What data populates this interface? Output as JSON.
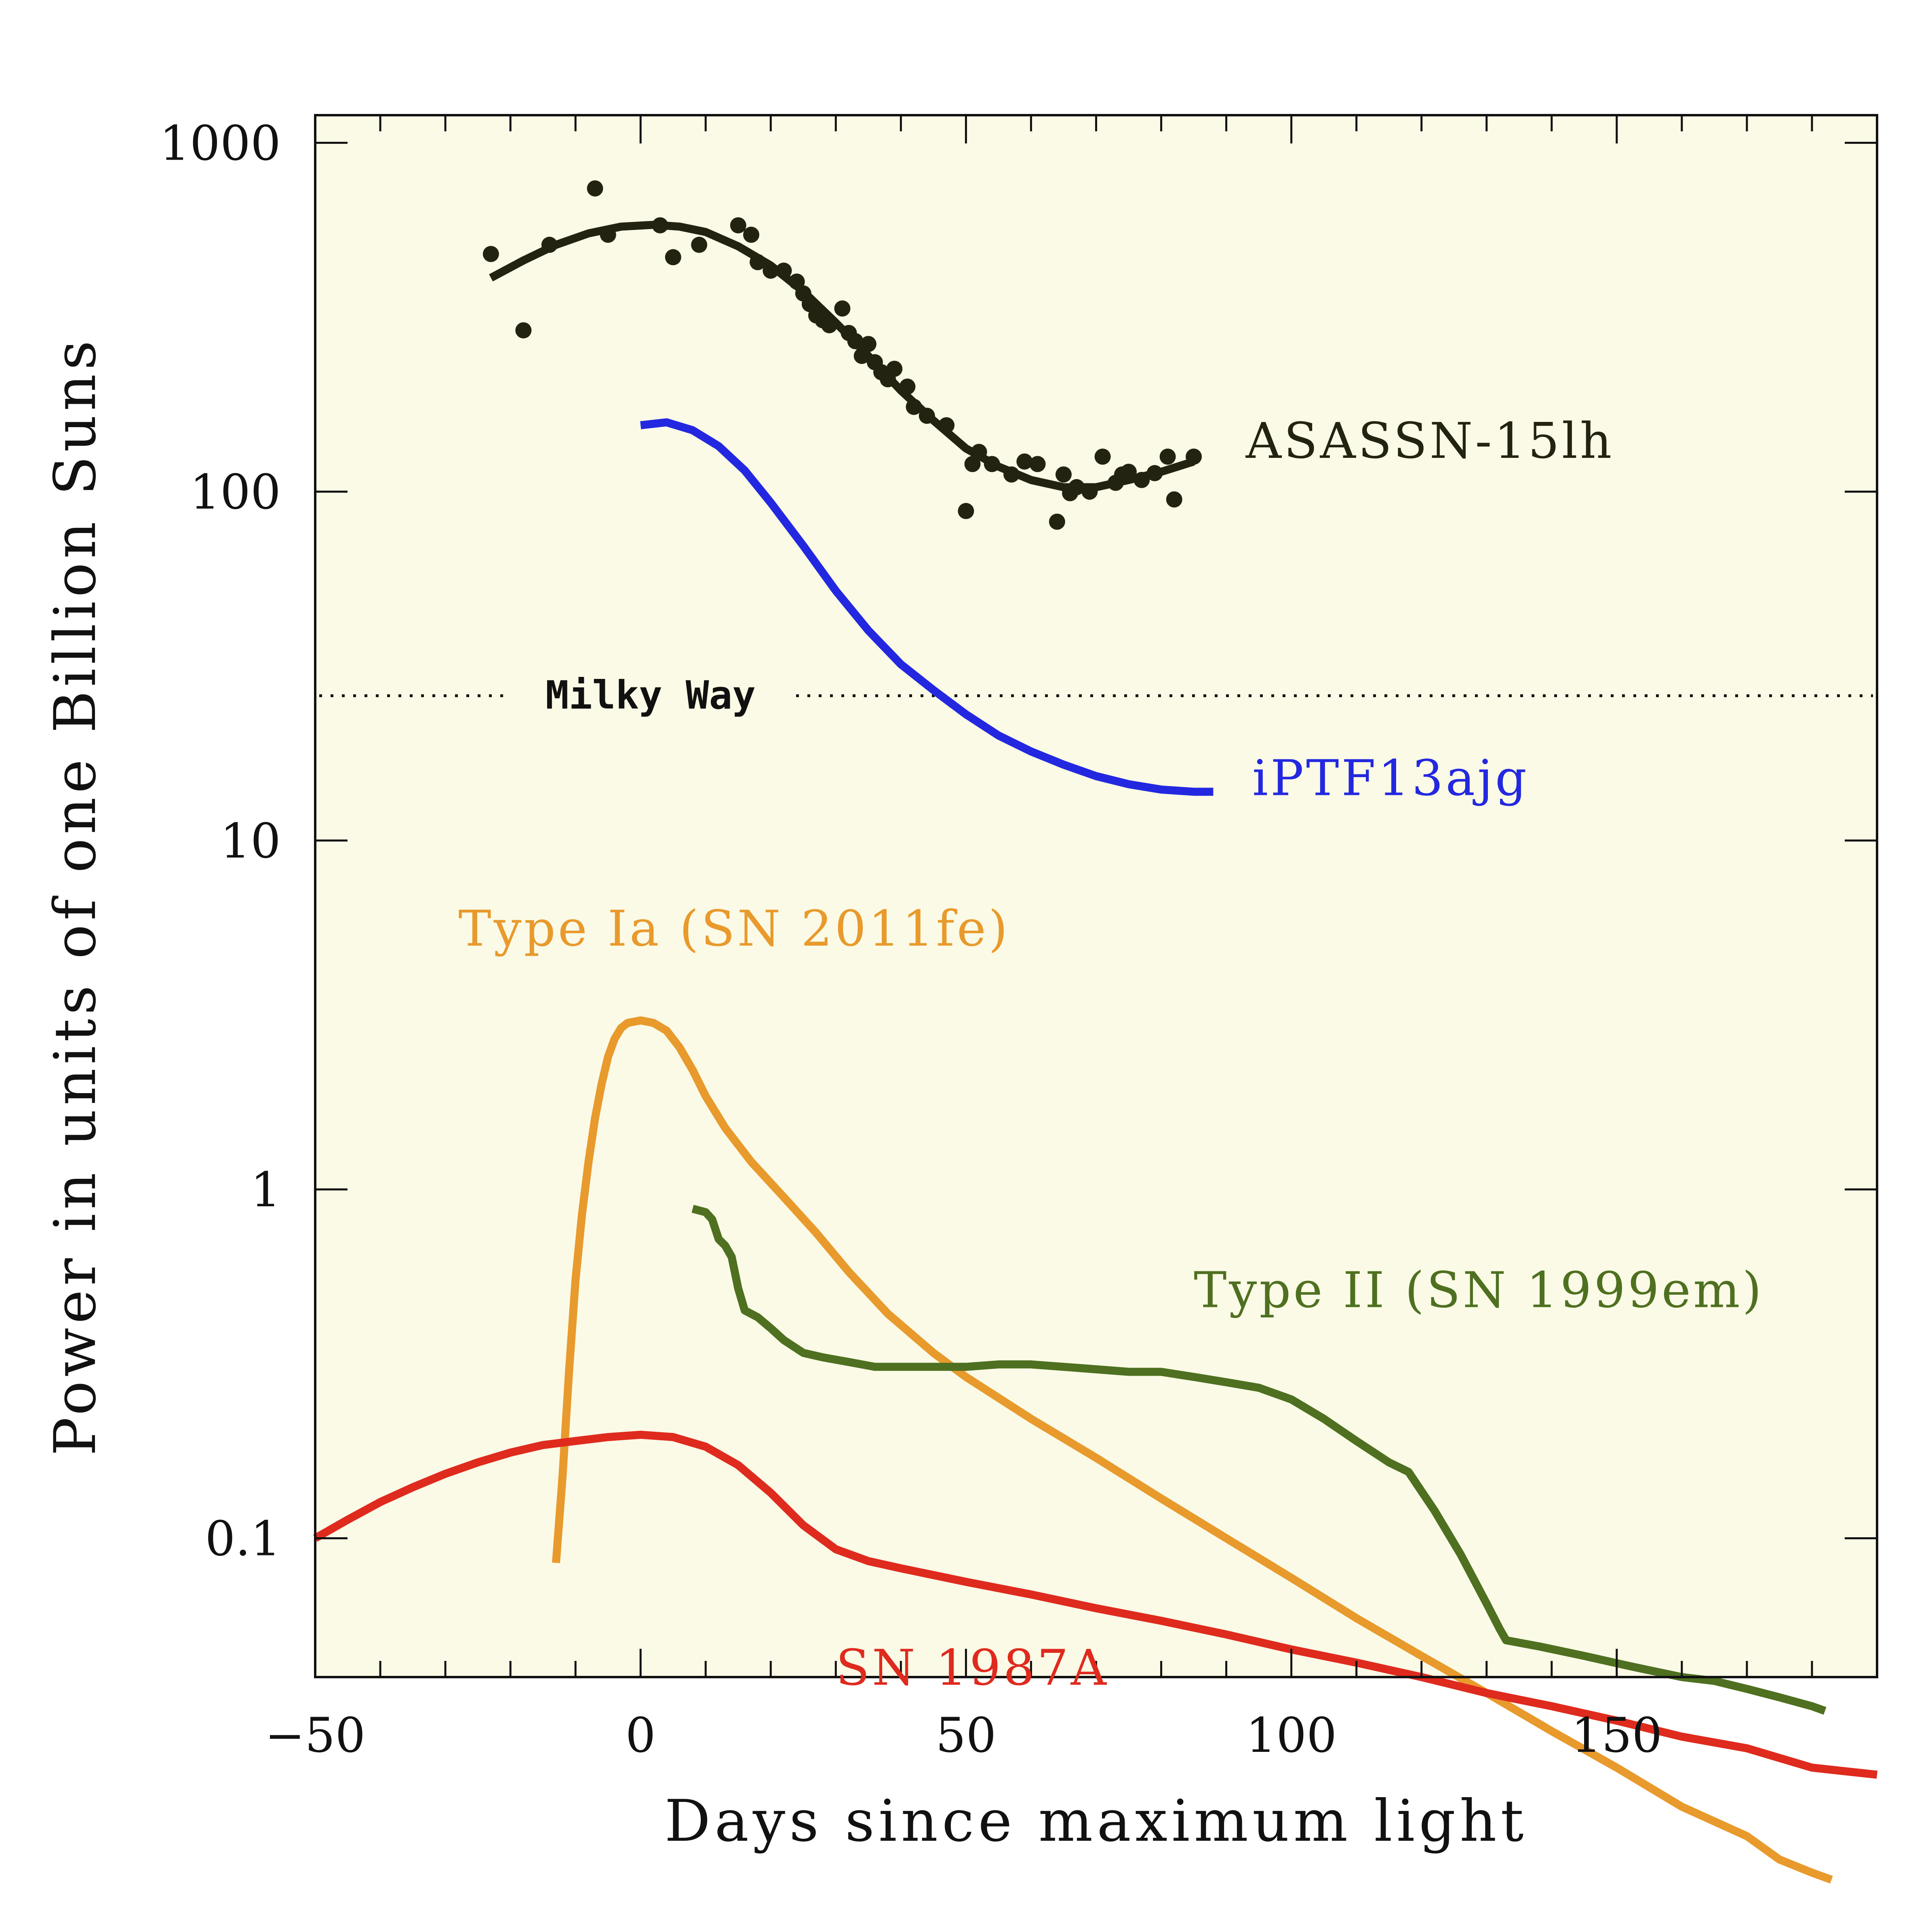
{
  "chart_data": {
    "type": "line",
    "xlabel": "Days since maximum light",
    "ylabel": "Power in units of one Billion Suns",
    "xlim": [
      -50,
      190
    ],
    "ylim": [
      0.04,
      1200
    ],
    "yscale": "log",
    "x_ticks": [
      {
        "v": -50,
        "label": "−50"
      },
      {
        "v": 0,
        "label": "0"
      },
      {
        "v": 50,
        "label": "50"
      },
      {
        "v": 100,
        "label": "100"
      },
      {
        "v": 150,
        "label": "150"
      }
    ],
    "y_ticks": [
      {
        "v": 0.1,
        "label": "0.1"
      },
      {
        "v": 1,
        "label": "1"
      },
      {
        "v": 10,
        "label": "10"
      },
      {
        "v": 100,
        "label": "100"
      },
      {
        "v": 1000,
        "label": "1000"
      }
    ],
    "background_color": "#fbfae6",
    "reference_line": {
      "name": "Milky Way",
      "value": 26
    },
    "series": [
      {
        "name": "ASASSN-15lh",
        "color": "#232312",
        "label_pos": {
          "x": 93,
          "y": 125
        },
        "curve": [
          [
            -23,
            410
          ],
          [
            -18,
            460
          ],
          [
            -13,
            510
          ],
          [
            -8,
            550
          ],
          [
            -3,
            575
          ],
          [
            2,
            582
          ],
          [
            6,
            575
          ],
          [
            10,
            555
          ],
          [
            15,
            505
          ],
          [
            20,
            445
          ],
          [
            25,
            375
          ],
          [
            30,
            305
          ],
          [
            35,
            245
          ],
          [
            40,
            195
          ],
          [
            45,
            160
          ],
          [
            50,
            133
          ],
          [
            55,
            118
          ],
          [
            60,
            108
          ],
          [
            65,
            103
          ],
          [
            70,
            103
          ],
          [
            75,
            108
          ],
          [
            80,
            114
          ],
          [
            85,
            122
          ]
        ],
        "points": [
          [
            -23,
            480
          ],
          [
            -18,
            290
          ],
          [
            -14,
            510
          ],
          [
            -7,
            740
          ],
          [
            -5,
            545
          ],
          [
            3,
            580
          ],
          [
            5,
            470
          ],
          [
            9,
            510
          ],
          [
            15,
            580
          ],
          [
            17,
            545
          ],
          [
            18,
            455
          ],
          [
            20,
            430
          ],
          [
            22,
            430
          ],
          [
            24,
            400
          ],
          [
            25,
            370
          ],
          [
            26,
            345
          ],
          [
            27,
            320
          ],
          [
            28,
            310
          ],
          [
            29,
            300
          ],
          [
            31,
            335
          ],
          [
            32,
            285
          ],
          [
            33,
            270
          ],
          [
            34,
            245
          ],
          [
            35,
            265
          ],
          [
            36,
            235
          ],
          [
            37,
            220
          ],
          [
            38,
            210
          ],
          [
            39,
            225
          ],
          [
            41,
            200
          ],
          [
            42,
            175
          ],
          [
            44,
            165
          ],
          [
            47,
            155
          ],
          [
            50,
            88
          ],
          [
            51,
            120
          ],
          [
            52,
            130
          ],
          [
            54,
            120
          ],
          [
            57,
            112
          ],
          [
            59,
            122
          ],
          [
            61,
            120
          ],
          [
            64,
            82
          ],
          [
            65,
            112
          ],
          [
            66,
            99
          ],
          [
            67,
            103
          ],
          [
            69,
            100
          ],
          [
            71,
            126
          ],
          [
            73,
            106
          ],
          [
            74,
            112
          ],
          [
            75,
            114
          ],
          [
            77,
            108
          ],
          [
            79,
            113
          ],
          [
            81,
            126
          ],
          [
            82,
            95
          ],
          [
            85,
            126
          ]
        ]
      },
      {
        "name": "iPTF13ajg",
        "color": "#2328e0",
        "label_pos": {
          "x": 94,
          "y": 13.5
        },
        "curve": [
          [
            0,
            155
          ],
          [
            4,
            158
          ],
          [
            8,
            150
          ],
          [
            12,
            135
          ],
          [
            16,
            115
          ],
          [
            20,
            93
          ],
          [
            25,
            70
          ],
          [
            30,
            52
          ],
          [
            35,
            40
          ],
          [
            40,
            32
          ],
          [
            45,
            27
          ],
          [
            50,
            23
          ],
          [
            55,
            20
          ],
          [
            60,
            18
          ],
          [
            65,
            16.5
          ],
          [
            70,
            15.3
          ],
          [
            75,
            14.5
          ],
          [
            80,
            14
          ],
          [
            85,
            13.8
          ],
          [
            88,
            13.8
          ]
        ]
      },
      {
        "name": "Type Ia (SN 2011fe)",
        "color": "#e89a2c",
        "label_pos": {
          "x": -28,
          "y": 5.0
        },
        "curve": [
          [
            -13,
            0.085
          ],
          [
            -12,
            0.15
          ],
          [
            -11,
            0.3
          ],
          [
            -10,
            0.55
          ],
          [
            -9,
            0.85
          ],
          [
            -8,
            1.2
          ],
          [
            -7,
            1.6
          ],
          [
            -6,
            2.0
          ],
          [
            -5,
            2.4
          ],
          [
            -4,
            2.7
          ],
          [
            -3,
            2.9
          ],
          [
            -2,
            3.0
          ],
          [
            0,
            3.05
          ],
          [
            2,
            3.0
          ],
          [
            4,
            2.85
          ],
          [
            6,
            2.55
          ],
          [
            8,
            2.2
          ],
          [
            10,
            1.85
          ],
          [
            13,
            1.5
          ],
          [
            17,
            1.2
          ],
          [
            22,
            0.95
          ],
          [
            27,
            0.75
          ],
          [
            32,
            0.58
          ],
          [
            38,
            0.44
          ],
          [
            45,
            0.34
          ],
          [
            50,
            0.29
          ],
          [
            60,
            0.22
          ],
          [
            70,
            0.17
          ],
          [
            80,
            0.13
          ],
          [
            90,
            0.1
          ],
          [
            100,
            0.077
          ],
          [
            110,
            0.059
          ],
          [
            120,
            0.046
          ],
          [
            130,
            0.036
          ],
          [
            140,
            0.028
          ],
          [
            150,
            0.022
          ],
          [
            160,
            0.017
          ],
          [
            170,
            0.014
          ],
          [
            175,
            0.012
          ],
          [
            180,
            0.011
          ],
          [
            183,
            0.0105
          ]
        ]
      },
      {
        "name": "Type II (SN 1999em)",
        "color": "#4e7020",
        "label_pos": {
          "x": 85,
          "y": 0.46
        },
        "curve": [
          [
            8,
            0.88
          ],
          [
            10,
            0.86
          ],
          [
            11,
            0.82
          ],
          [
            12,
            0.72
          ],
          [
            13,
            0.69
          ],
          [
            14,
            0.64
          ],
          [
            15,
            0.52
          ],
          [
            16,
            0.45
          ],
          [
            18,
            0.43
          ],
          [
            20,
            0.4
          ],
          [
            22,
            0.37
          ],
          [
            25,
            0.34
          ],
          [
            28,
            0.33
          ],
          [
            32,
            0.32
          ],
          [
            36,
            0.31
          ],
          [
            40,
            0.31
          ],
          [
            45,
            0.31
          ],
          [
            50,
            0.31
          ],
          [
            55,
            0.315
          ],
          [
            60,
            0.315
          ],
          [
            65,
            0.31
          ],
          [
            70,
            0.305
          ],
          [
            75,
            0.3
          ],
          [
            80,
            0.3
          ],
          [
            85,
            0.29
          ],
          [
            90,
            0.28
          ],
          [
            95,
            0.27
          ],
          [
            100,
            0.25
          ],
          [
            105,
            0.22
          ],
          [
            110,
            0.19
          ],
          [
            115,
            0.165
          ],
          [
            118,
            0.155
          ],
          [
            122,
            0.12
          ],
          [
            126,
            0.09
          ],
          [
            130,
            0.065
          ],
          [
            132,
            0.055
          ],
          [
            133,
            0.051
          ],
          [
            138,
            0.049
          ],
          [
            145,
            0.046
          ],
          [
            152,
            0.043
          ],
          [
            160,
            0.04
          ],
          [
            165,
            0.039
          ],
          [
            170,
            0.037
          ],
          [
            175,
            0.035
          ],
          [
            180,
            0.033
          ],
          [
            182,
            0.032
          ]
        ]
      },
      {
        "name": "SN 1987A",
        "color": "#df2a1e",
        "label_pos": {
          "x": 30,
          "y": 0.038
        },
        "curve": [
          [
            -50,
            0.1
          ],
          [
            -45,
            0.113
          ],
          [
            -40,
            0.127
          ],
          [
            -35,
            0.14
          ],
          [
            -30,
            0.153
          ],
          [
            -25,
            0.165
          ],
          [
            -20,
            0.176
          ],
          [
            -15,
            0.185
          ],
          [
            -10,
            0.19
          ],
          [
            -5,
            0.195
          ],
          [
            0,
            0.198
          ],
          [
            5,
            0.195
          ],
          [
            10,
            0.183
          ],
          [
            15,
            0.162
          ],
          [
            20,
            0.135
          ],
          [
            25,
            0.109
          ],
          [
            30,
            0.093
          ],
          [
            35,
            0.086
          ],
          [
            40,
            0.082
          ],
          [
            50,
            0.075
          ],
          [
            60,
            0.069
          ],
          [
            70,
            0.063
          ],
          [
            80,
            0.058
          ],
          [
            90,
            0.053
          ],
          [
            100,
            0.048
          ],
          [
            110,
            0.044
          ],
          [
            120,
            0.04
          ],
          [
            130,
            0.036
          ],
          [
            140,
            0.033
          ],
          [
            150,
            0.03
          ],
          [
            160,
            0.027
          ],
          [
            170,
            0.025
          ],
          [
            180,
            0.022
          ],
          [
            190,
            0.021
          ]
        ]
      }
    ]
  }
}
